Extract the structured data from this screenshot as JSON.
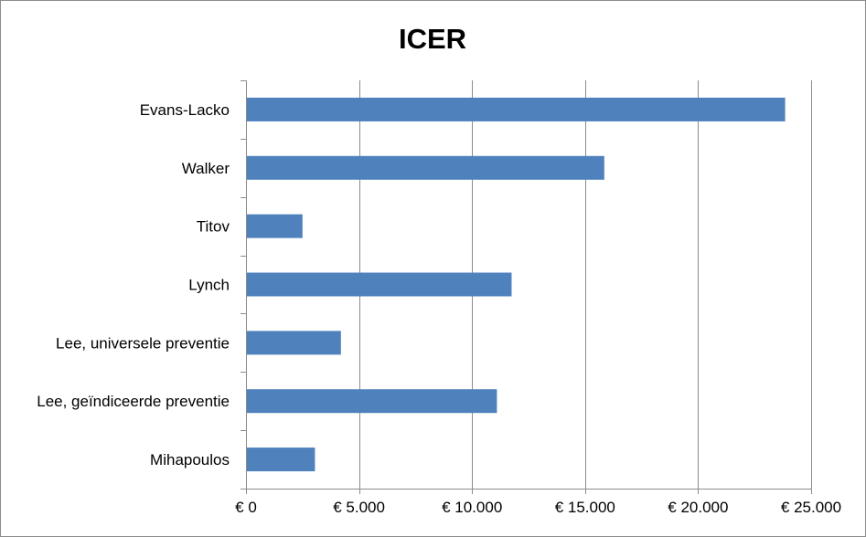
{
  "chart_data": {
    "type": "bar",
    "orientation": "horizontal",
    "title": "ICER",
    "xlabel": "",
    "ylabel": "",
    "categories": [
      "Evans-Lacko",
      "Walker",
      "Titov",
      "Lynch",
      "Lee, universele preventie",
      "Lee, geïndiceerde preventie",
      "Mihapoulos"
    ],
    "values": [
      23850,
      15850,
      2500,
      11750,
      4200,
      11100,
      3050
    ],
    "xlim": [
      0,
      25000
    ],
    "x_ticks": [
      0,
      5000,
      10000,
      15000,
      20000,
      25000
    ],
    "x_tick_labels": [
      "€ 0",
      "€ 5.000",
      "€ 10.000",
      "€ 15.000",
      "€ 20.000",
      "€ 25.000"
    ],
    "grid": "vertical major gridlines",
    "legend": "none",
    "bar_color": "#4f81bd"
  }
}
